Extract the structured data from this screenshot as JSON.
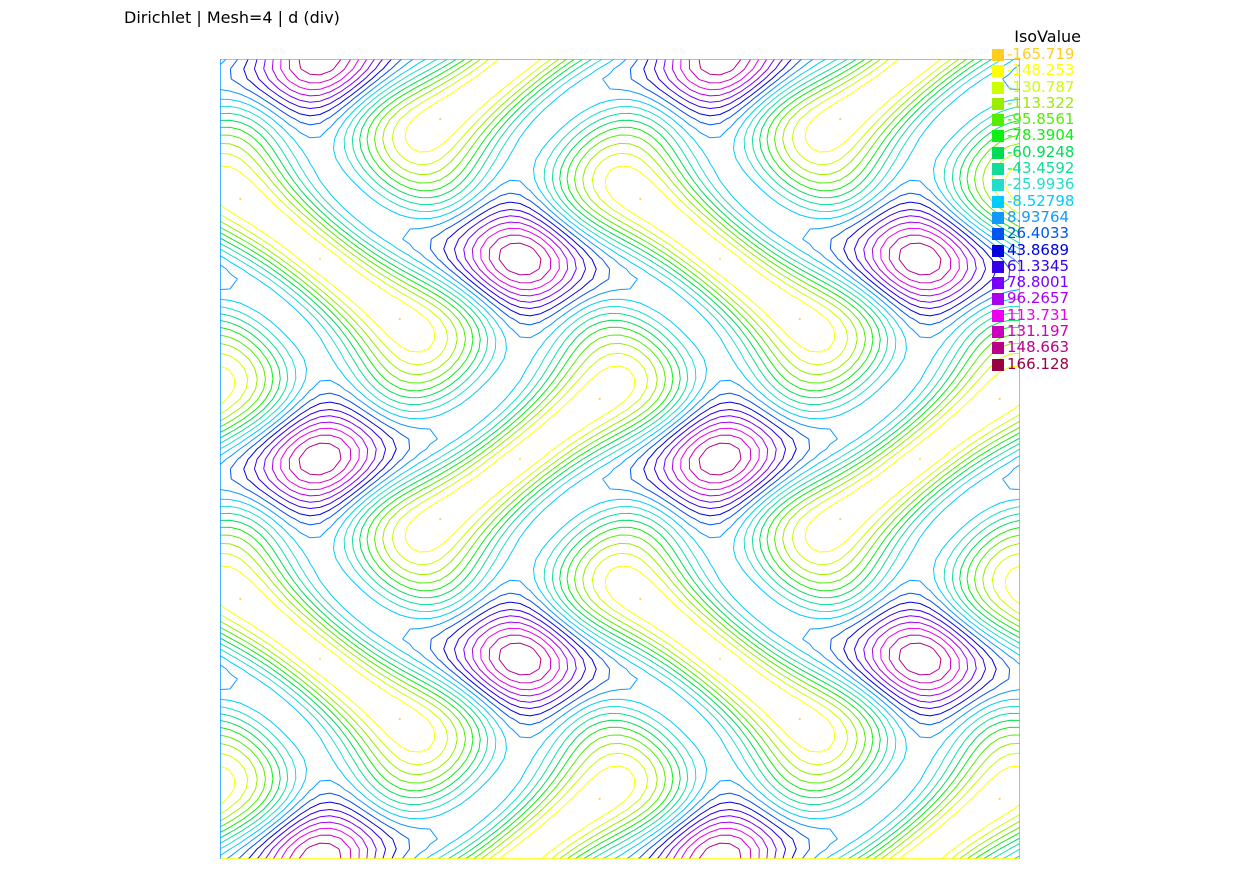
{
  "title": "Dirichlet | Mesh=4 | d (div)",
  "chart_data": {
    "type": "contour",
    "title": "Dirichlet | Mesh=4 | d (div)",
    "legend": {
      "title": "IsoValue",
      "placement": "top-right",
      "levels": [
        {
          "value": "-165.719",
          "color": "#ffcc22"
        },
        {
          "value": "-148.253",
          "color": "#ffff00"
        },
        {
          "value": "-130.787",
          "color": "#ccff00"
        },
        {
          "value": "-113.322",
          "color": "#99ee00"
        },
        {
          "value": "-95.8561",
          "color": "#55ee00"
        },
        {
          "value": "-78.3904",
          "color": "#11ee11"
        },
        {
          "value": "-60.9248",
          "color": "#00dd55"
        },
        {
          "value": "-43.4592",
          "color": "#11dd99"
        },
        {
          "value": "-25.9936",
          "color": "#22ddcc"
        },
        {
          "value": "-8.52798",
          "color": "#00ccff"
        },
        {
          "value": "8.93764",
          "color": "#1199ff"
        },
        {
          "value": "26.4033",
          "color": "#0055ee"
        },
        {
          "value": "43.8689",
          "color": "#0000dd"
        },
        {
          "value": "61.3345",
          "color": "#3300ee"
        },
        {
          "value": "78.8001",
          "color": "#7700ff"
        },
        {
          "value": "96.2657",
          "color": "#aa00ee"
        },
        {
          "value": "113.731",
          "color": "#ee00ee"
        },
        {
          "value": "131.197",
          "color": "#cc00bb"
        },
        {
          "value": "148.663",
          "color": "#bb0088"
        },
        {
          "value": "166.128",
          "color": "#990044"
        }
      ]
    },
    "grid": false,
    "domain": {
      "x": [
        0,
        1
      ],
      "y": [
        0,
        1
      ]
    }
  }
}
